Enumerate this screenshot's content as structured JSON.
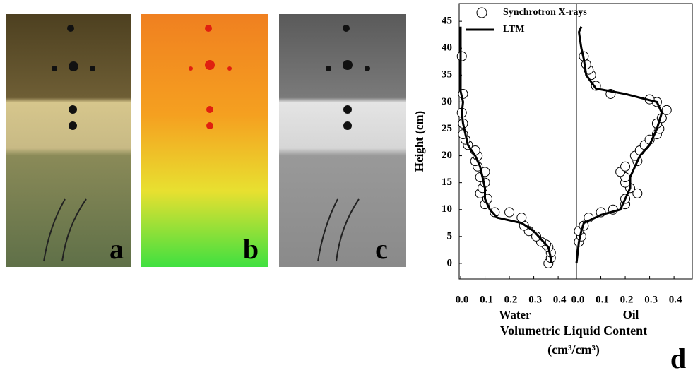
{
  "images": {
    "labels": [
      "a",
      "b",
      "c"
    ]
  },
  "chart_data": [
    {
      "type": "scatter",
      "x_label": "Water",
      "y_label": "Height (cm)",
      "xlim": [
        0,
        0.475
      ],
      "ylim": [
        -2.9,
        48.3
      ],
      "xticks": [
        {
          "value": 0,
          "label": "0.0"
        },
        {
          "value": 0.1,
          "label": "0.1"
        },
        {
          "value": 0.2,
          "label": "0.2"
        },
        {
          "value": 0.3,
          "label": "0.3"
        },
        {
          "value": 0.4,
          "label": "0.4"
        }
      ],
      "yticks": [
        0,
        5,
        10,
        15,
        20,
        25,
        30,
        35,
        40,
        45
      ],
      "series": [
        {
          "name": "Synchrotron X-rays",
          "mode": "markers",
          "color": "#000000",
          "x": [
            0.36,
            0.37,
            0.37,
            0.36,
            0.35,
            0.33,
            0.31,
            0.28,
            0.26,
            0.25,
            0.2,
            0.14,
            0.1,
            0.11,
            0.08,
            0.09,
            0.1,
            0.08,
            0.1,
            0.07,
            0.06,
            0.07,
            0.06,
            0.03,
            0.02,
            0.01,
            0.01,
            0.005,
            0.01,
            0.005
          ],
          "values": [
            0,
            1,
            2,
            3,
            3.5,
            4,
            5,
            6,
            7,
            8.5,
            9.5,
            9.5,
            11,
            12,
            13,
            14,
            15,
            16,
            17,
            18,
            19,
            20,
            21,
            22,
            23,
            24,
            26,
            28,
            31.5,
            38.5
          ]
        },
        {
          "name": "LTM",
          "mode": "line",
          "color": "#000000",
          "x": [
            0,
            0,
            0,
            0,
            0.01,
            0.005,
            0.01,
            0.02,
            0.03,
            0.06,
            0.08,
            0.09,
            0.1,
            0.1,
            0.12,
            0.15,
            0.25,
            0.3,
            0.33,
            0.36,
            0.37,
            0.37
          ],
          "values": [
            44,
            40,
            35,
            32,
            30,
            28,
            26,
            24,
            22,
            20,
            18,
            16,
            14,
            12,
            10,
            8.5,
            7.5,
            6,
            4.5,
            3,
            1,
            0
          ]
        }
      ]
    },
    {
      "type": "scatter",
      "x_label": "Oil",
      "x_title": [
        "Volumetric Liquid Content",
        "(cm³/cm³)"
      ],
      "panel_label": "d",
      "xlim": [
        0,
        0.475
      ],
      "ylim": [
        -2.9,
        48.3
      ],
      "xticks": [
        {
          "value": 0,
          "label": "0.0"
        },
        {
          "value": 0.1,
          "label": "0.1"
        },
        {
          "value": 0.2,
          "label": "0.2"
        },
        {
          "value": 0.3,
          "label": "0.3"
        },
        {
          "value": 0.4,
          "label": "0.4"
        }
      ],
      "series": [
        {
          "mode": "markers",
          "color": "#000000",
          "x": [
            0.01,
            0.02,
            0.01,
            0.03,
            0.05,
            0.1,
            0.15,
            0.2,
            0.2,
            0.25,
            0.22,
            0.2,
            0.2,
            0.18,
            0.2,
            0.25,
            0.24,
            0.26,
            0.28,
            0.3,
            0.33,
            0.34,
            0.33,
            0.35,
            0.37,
            0.33,
            0.3,
            0.14,
            0.08,
            0.06,
            0.05,
            0.04,
            0.03
          ],
          "values": [
            4,
            5,
            6,
            7,
            8.5,
            9.5,
            10,
            11,
            12,
            13,
            14,
            15,
            16,
            17,
            18,
            19,
            20,
            21,
            22,
            23,
            24,
            25,
            26,
            27,
            28.5,
            30,
            30.5,
            31.5,
            33,
            35,
            36,
            37,
            38.5
          ]
        },
        {
          "mode": "line",
          "color": "#000000",
          "x": [
            0,
            0.01,
            0.02,
            0.03,
            0.1,
            0.18,
            0.2,
            0.22,
            0.22,
            0.24,
            0.26,
            0.3,
            0.33,
            0.35,
            0.33,
            0.2,
            0.08,
            0.04,
            0.03,
            0.02,
            0.01,
            0.02
          ],
          "values": [
            0,
            4,
            6,
            7.5,
            9,
            10,
            12,
            14,
            16,
            18,
            20,
            22,
            25,
            28,
            30,
            31.5,
            32.5,
            35,
            38,
            40,
            43,
            44
          ]
        }
      ]
    }
  ]
}
